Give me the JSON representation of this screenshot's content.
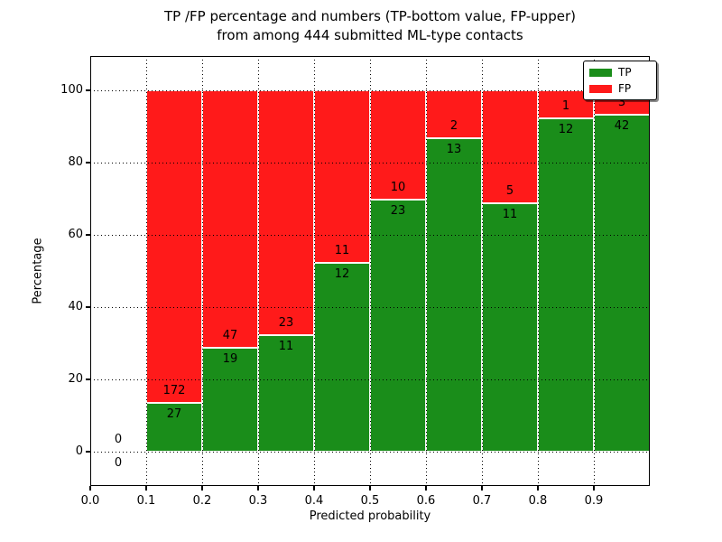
{
  "title": {
    "line1": "TP /FP percentage and numbers (TP-bottom value, FP-upper)",
    "line2": "from among 444 submitted ML-type contacts"
  },
  "axes": {
    "xlabel": "Predicted probability",
    "ylabel": "Percentage",
    "xticks": [
      "0.0",
      "0.1",
      "0.2",
      "0.3",
      "0.4",
      "0.5",
      "0.6",
      "0.7",
      "0.8",
      "0.9"
    ],
    "yticks": [
      "0",
      "20",
      "40",
      "60",
      "80",
      "100"
    ]
  },
  "legend": [
    {
      "label": "TP",
      "color": "#1a8d1a"
    },
    {
      "label": "FP",
      "color": "#ff1a1a"
    }
  ],
  "chart_data": {
    "type": "bar",
    "stacked": true,
    "title": "TP /FP percentage and numbers (TP-bottom value, FP-upper) from among 444 submitted ML-type contacts",
    "xlabel": "Predicted probability",
    "ylabel": "Percentage",
    "xlim": [
      0.0,
      1.0
    ],
    "ylim": [
      -9.5,
      109.5
    ],
    "grid": true,
    "legend_position": "upper right",
    "bin_width": 0.1,
    "total_contacts": 444,
    "series": [
      {
        "name": "TP",
        "color": "#1a8d1a",
        "position": "bottom"
      },
      {
        "name": "FP",
        "color": "#ff1a1a",
        "position": "top"
      }
    ],
    "bins": [
      {
        "x_start": 0.0,
        "tp": 0,
        "fp": 0,
        "tp_pct": 0.0
      },
      {
        "x_start": 0.1,
        "tp": 27,
        "fp": 172,
        "tp_pct": 13.57
      },
      {
        "x_start": 0.2,
        "tp": 19,
        "fp": 47,
        "tp_pct": 28.79
      },
      {
        "x_start": 0.3,
        "tp": 11,
        "fp": 23,
        "tp_pct": 32.35
      },
      {
        "x_start": 0.4,
        "tp": 12,
        "fp": 11,
        "tp_pct": 52.17
      },
      {
        "x_start": 0.5,
        "tp": 23,
        "fp": 10,
        "tp_pct": 69.7
      },
      {
        "x_start": 0.6,
        "tp": 13,
        "fp": 2,
        "tp_pct": 86.67
      },
      {
        "x_start": 0.7,
        "tp": 11,
        "fp": 5,
        "tp_pct": 68.75
      },
      {
        "x_start": 0.8,
        "tp": 12,
        "fp": 1,
        "tp_pct": 92.31
      },
      {
        "x_start": 0.9,
        "tp": 42,
        "fp": 3,
        "tp_pct": 93.33
      }
    ]
  }
}
